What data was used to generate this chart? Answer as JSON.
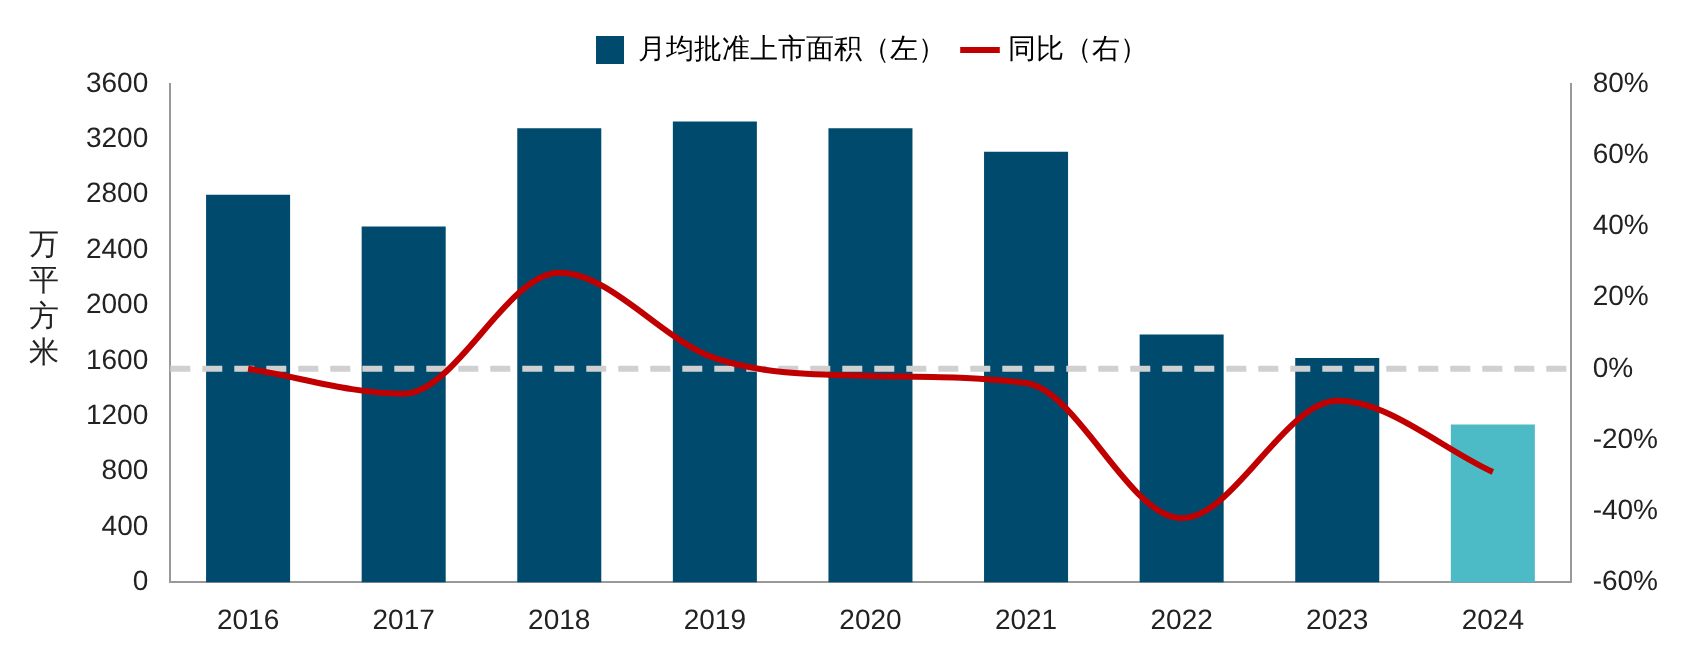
{
  "chart_data": {
    "type": "bar",
    "categories": [
      "2016",
      "2017",
      "2018",
      "2019",
      "2020",
      "2021",
      "2022",
      "2023",
      "2024"
    ],
    "series": [
      {
        "name": "月均批准上市面积（左）",
        "color": "#004a6e",
        "colors": [
          "#004a6e",
          "#004a6e",
          "#004a6e",
          "#004a6e",
          "#004a6e",
          "#004a6e",
          "#004a6e",
          "#004a6e",
          "#4dbbc6"
        ],
        "values": [
          2800,
          2570,
          3280,
          3330,
          3280,
          3110,
          1790,
          1620,
          1140
        ]
      },
      {
        "name": "同比（右）",
        "type": "line",
        "axis": "y2",
        "color": "#c00000",
        "marker": "none",
        "line_style": "solid",
        "values": [
          0,
          -7,
          27,
          3,
          -2,
          -4,
          -42,
          -9,
          -29
        ]
      }
    ],
    "ylabel": "万平方米",
    "ylim": [
      0,
      3600
    ],
    "yticks": [
      0,
      400,
      800,
      1200,
      1600,
      2000,
      2400,
      2800,
      3200,
      3600
    ],
    "y2lim": [
      -60,
      80
    ],
    "y2ticks": [
      {
        "value": -60,
        "label": "-60%"
      },
      {
        "value": -40,
        "label": "-40%"
      },
      {
        "value": -20,
        "label": "-20%"
      },
      {
        "value": 0,
        "label": "0%"
      },
      {
        "value": 20,
        "label": "20%"
      },
      {
        "value": 40,
        "label": "40%"
      },
      {
        "value": 60,
        "label": "60%"
      },
      {
        "value": 80,
        "label": "80%"
      }
    ],
    "ref_lines": [
      {
        "axis": "y2",
        "value": 0,
        "color": "#d0d0d0",
        "line_style": "dashed"
      }
    ],
    "grid": false,
    "legend": "top"
  }
}
